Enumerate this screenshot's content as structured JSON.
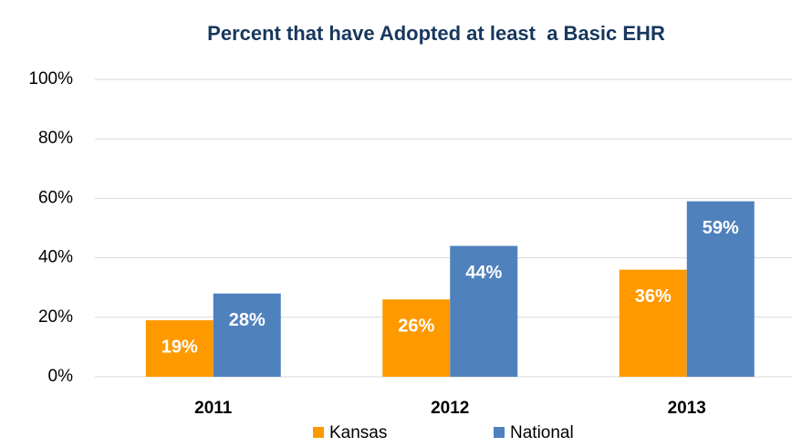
{
  "chart_data": {
    "type": "bar",
    "title": "Percent that have Adopted at least  a Basic EHR",
    "categories": [
      "2011",
      "2012",
      "2013"
    ],
    "series": [
      {
        "name": "Kansas",
        "color": "#ff9900",
        "values": [
          19,
          26,
          36
        ],
        "value_labels": [
          "19%",
          "26%",
          "36%"
        ]
      },
      {
        "name": "National",
        "color": "#4f81bd",
        "values": [
          28,
          44,
          59
        ],
        "value_labels": [
          "28%",
          "44%",
          "59%"
        ]
      }
    ],
    "ylim": [
      0,
      100
    ],
    "yticks": [
      {
        "value": 0,
        "label": "0%"
      },
      {
        "value": 20,
        "label": "20%"
      },
      {
        "value": 40,
        "label": "40%"
      },
      {
        "value": 60,
        "label": "60%"
      },
      {
        "value": 80,
        "label": "80%"
      },
      {
        "value": 100,
        "label": "100%"
      }
    ],
    "grid": true,
    "legend": "bottom"
  }
}
